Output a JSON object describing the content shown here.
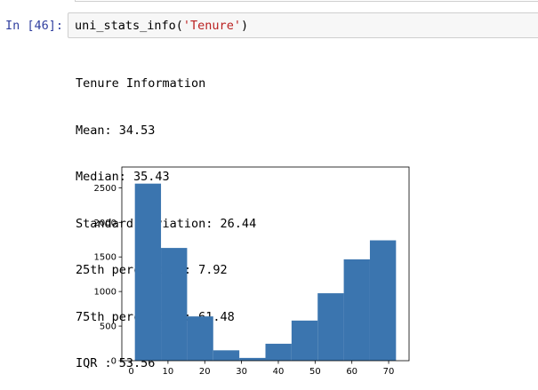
{
  "cell": {
    "prompt": "In [46]:",
    "code": {
      "func": "uni_stats_info(",
      "arg": "'Tenure'",
      "close": ")"
    }
  },
  "output": {
    "lines": [
      "Tenure Information",
      "Mean: 34.53",
      "Median: 35.43",
      "Standard deviation: 26.44",
      "25th percentile: 7.92",
      "75th percentile: 61.48",
      "IQR : 53.56"
    ]
  },
  "chart_data": {
    "type": "bar",
    "title": "",
    "xlabel": "",
    "ylabel": "",
    "bin_edges": [
      1,
      8.1,
      15.2,
      22.3,
      29.4,
      36.5,
      43.6,
      50.7,
      57.8,
      64.9,
      72
    ],
    "values": [
      2560,
      1630,
      640,
      150,
      40,
      245,
      580,
      975,
      1465,
      1740
    ],
    "xlim": [
      -2.55,
      75.55
    ],
    "ylim": [
      0,
      2800
    ],
    "xticks": [
      0,
      10,
      20,
      30,
      40,
      50,
      60,
      70
    ],
    "yticks": [
      0,
      500,
      1000,
      1500,
      2000,
      2500
    ],
    "bar_color": "#3b75af",
    "grid": false,
    "legend": false
  }
}
